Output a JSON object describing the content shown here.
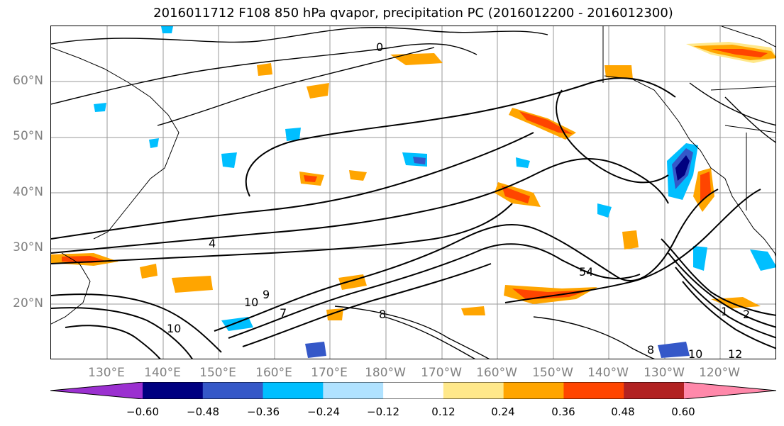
{
  "title": "2016011712 F108 850 hPa qvapor, precipitation PC (2016012200 - 2016012300)",
  "lat_labels": [
    "60°N",
    "50°N",
    "40°N",
    "30°N",
    "20°N"
  ],
  "lon_labels": [
    "130°E",
    "140°E",
    "150°E",
    "160°E",
    "170°E",
    "180°W",
    "170°W",
    "160°W",
    "150°W",
    "140°W",
    "130°W",
    "120°W"
  ],
  "contour_labels": [
    "0",
    "4",
    "7",
    "10",
    "10",
    "8",
    "9",
    "54",
    "1",
    "2",
    "12",
    "10",
    "8"
  ],
  "colorbar": {
    "ticks": [
      "−0.60",
      "−0.48",
      "−0.36",
      "−0.24",
      "−0.12",
      "0.12",
      "0.24",
      "0.36",
      "0.48",
      "0.60"
    ],
    "colors": [
      "#9b30d0",
      "#000080",
      "#3558c8",
      "#00bfff",
      "#b0e2ff",
      "#ffffff",
      "#ffe88a",
      "#ffa500",
      "#ff4500",
      "#b22222",
      "#ff88aa"
    ]
  }
}
